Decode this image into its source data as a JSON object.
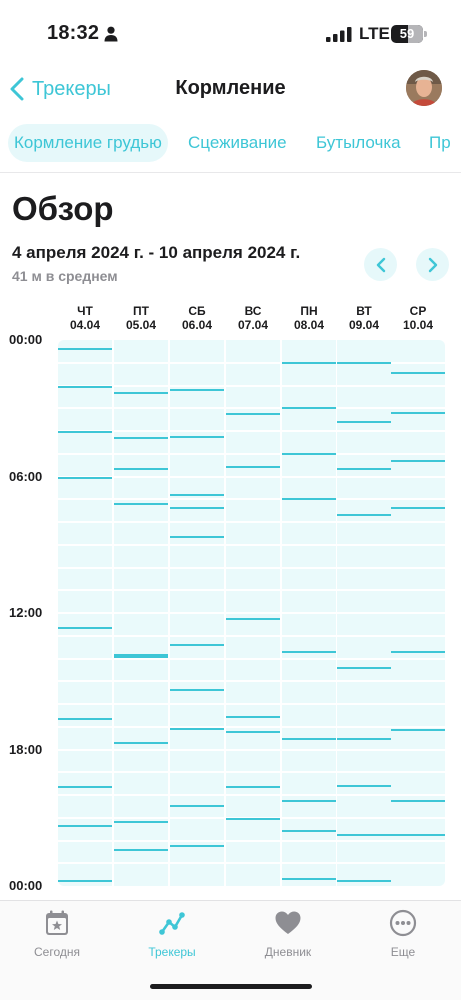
{
  "status_bar": {
    "time": "18:32",
    "network": "LTE",
    "battery": "59"
  },
  "nav": {
    "back_label": "Трекеры",
    "title": "Кормление"
  },
  "tabs": [
    {
      "label": "Кормление грудью",
      "active": true
    },
    {
      "label": "Сцеживание",
      "active": false
    },
    {
      "label": "Бутылочка",
      "active": false
    },
    {
      "label": "Пр",
      "active": false
    }
  ],
  "overview": {
    "title": "Обзор",
    "date_range": "4 апреля 2024 г. - 10 апреля 2024 г.",
    "average": "41 м в среднем"
  },
  "chart_data": {
    "type": "timeline",
    "y_ticks": [
      "00:00",
      "06:00",
      "12:00",
      "18:00",
      "00:00"
    ],
    "y_range_hours": [
      0,
      24
    ],
    "days": [
      {
        "weekday": "ЧТ",
        "date": "04.04",
        "feedings": [
          0.4,
          2.05,
          4.05,
          6.05,
          12.65,
          16.65,
          19.65,
          21.35,
          23.8
        ]
      },
      {
        "weekday": "ПТ",
        "date": "05.04",
        "feedings": [
          2.35,
          4.3,
          5.65,
          7.2,
          13.85,
          13.95,
          17.7,
          21.2,
          22.4
        ]
      },
      {
        "weekday": "СБ",
        "date": "06.04",
        "feedings": [
          2.2,
          4.25,
          6.8,
          7.4,
          8.65,
          13.4,
          15.4,
          17.1,
          20.5,
          22.25
        ]
      },
      {
        "weekday": "ВС",
        "date": "07.04",
        "feedings": [
          3.25,
          5.6,
          12.25,
          16.55,
          17.25,
          19.65,
          21.05
        ]
      },
      {
        "weekday": "ПН",
        "date": "08.04",
        "feedings": [
          1.0,
          3.0,
          5.0,
          7.0,
          13.7,
          17.55,
          20.25,
          21.6,
          23.7
        ]
      },
      {
        "weekday": "ВТ",
        "date": "09.04",
        "feedings": [
          1.0,
          3.6,
          5.65,
          7.7,
          14.4,
          17.55,
          19.6,
          21.75,
          23.8
        ]
      },
      {
        "weekday": "СР",
        "date": "10.04",
        "feedings": [
          1.45,
          3.2,
          5.3,
          7.4,
          13.7,
          17.15,
          20.25,
          21.75
        ]
      }
    ]
  },
  "bottom_tabs": [
    {
      "label": "Сегодня",
      "icon": "calendar-star-icon",
      "active": false
    },
    {
      "label": "Трекеры",
      "icon": "trend-chart-icon",
      "active": true
    },
    {
      "label": "Дневник",
      "icon": "heart-icon",
      "active": false
    },
    {
      "label": "Еще",
      "icon": "more-dots-icon",
      "active": false
    }
  ],
  "colors": {
    "accent": "#3ec6d6",
    "column_bg": "#eafafb",
    "tab_active_bg": "#e6f8fa",
    "inactive_gray": "#8e8e93"
  }
}
